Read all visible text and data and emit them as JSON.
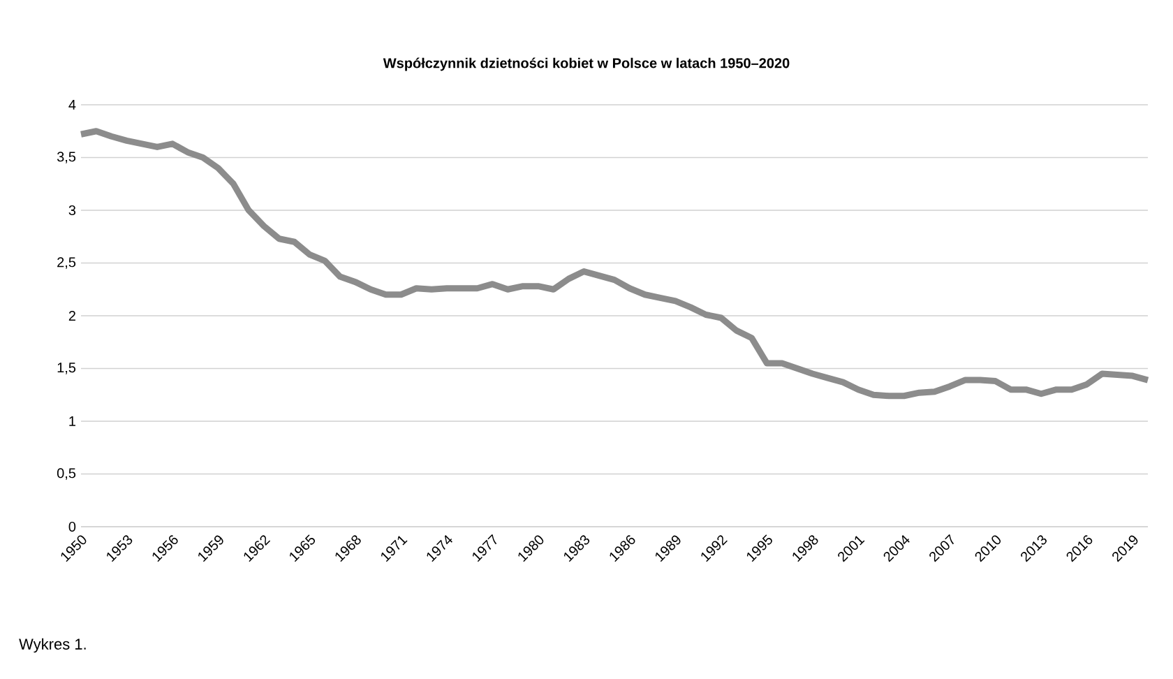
{
  "chart_data": {
    "type": "line",
    "title": "Współczynnik dzietności kobiet w Polsce w latach 1950–2020",
    "annotations": [
      "Wykres 1."
    ],
    "x": [
      1950,
      1951,
      1952,
      1953,
      1954,
      1955,
      1956,
      1957,
      1958,
      1959,
      1960,
      1961,
      1962,
      1963,
      1964,
      1965,
      1966,
      1967,
      1968,
      1969,
      1970,
      1971,
      1972,
      1973,
      1974,
      1975,
      1976,
      1977,
      1978,
      1979,
      1980,
      1981,
      1982,
      1983,
      1984,
      1985,
      1986,
      1987,
      1988,
      1989,
      1990,
      1991,
      1992,
      1993,
      1994,
      1995,
      1996,
      1997,
      1998,
      1999,
      2000,
      2001,
      2002,
      2003,
      2004,
      2005,
      2006,
      2007,
      2008,
      2009,
      2010,
      2011,
      2012,
      2013,
      2014,
      2015,
      2016,
      2017,
      2018,
      2019,
      2020
    ],
    "series": [
      {
        "color": "#8c8c8c",
        "values": [
          3.72,
          3.75,
          3.7,
          3.66,
          3.63,
          3.6,
          3.63,
          3.55,
          3.5,
          3.4,
          3.25,
          3.0,
          2.85,
          2.73,
          2.7,
          2.58,
          2.52,
          2.37,
          2.32,
          2.25,
          2.2,
          2.2,
          2.26,
          2.25,
          2.26,
          2.26,
          2.26,
          2.3,
          2.25,
          2.28,
          2.28,
          2.25,
          2.35,
          2.42,
          2.38,
          2.34,
          2.26,
          2.2,
          2.17,
          2.14,
          2.08,
          2.01,
          1.98,
          1.86,
          1.79,
          1.55,
          1.55,
          1.5,
          1.45,
          1.41,
          1.37,
          1.3,
          1.25,
          1.24,
          1.24,
          1.27,
          1.28,
          1.33,
          1.39,
          1.39,
          1.38,
          1.3,
          1.3,
          1.26,
          1.3,
          1.3,
          1.35,
          1.45,
          1.44,
          1.43,
          1.39
        ]
      }
    ],
    "xlim": [
      1950,
      2020
    ],
    "xticks": [
      1950,
      1953,
      1956,
      1959,
      1962,
      1965,
      1968,
      1971,
      1974,
      1977,
      1980,
      1983,
      1986,
      1989,
      1992,
      1995,
      1998,
      2001,
      2004,
      2007,
      2010,
      2013,
      2016,
      2019
    ],
    "ylim": [
      0,
      4
    ],
    "yticks": [
      0,
      {
        "value": 0.5,
        "label": "0,5"
      },
      1,
      {
        "value": 1.5,
        "label": "1,5"
      },
      2,
      {
        "value": 2.5,
        "label": "2,5"
      },
      3,
      {
        "value": 3.5,
        "label": "3,5"
      },
      4
    ],
    "grid": "y",
    "legend": false,
    "marker": "none",
    "line_style": "solid"
  }
}
